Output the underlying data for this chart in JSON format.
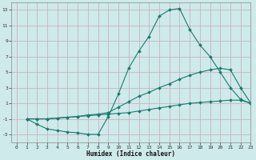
{
  "line1_x": [
    1,
    2,
    3,
    4,
    5,
    6,
    7,
    8,
    9,
    10,
    11,
    12,
    13,
    14,
    15,
    16,
    17,
    18,
    19,
    20,
    21,
    22,
    23
  ],
  "line1_y": [
    -1,
    -1.7,
    -2.3,
    -2.5,
    -2.7,
    -2.8,
    -3.0,
    -3.0,
    -0.7,
    2.2,
    5.5,
    7.7,
    9.6,
    12.2,
    13.0,
    13.2,
    10.5,
    8.5,
    7.0,
    5.0,
    3.0,
    1.5,
    1.0
  ],
  "line2_x": [
    1,
    2,
    3,
    4,
    5,
    6,
    7,
    8,
    9,
    10,
    11,
    12,
    13,
    14,
    15,
    16,
    17,
    18,
    19,
    20,
    21,
    22,
    23
  ],
  "line2_y": [
    -1,
    -1.0,
    -1.0,
    -0.9,
    -0.8,
    -0.7,
    -0.5,
    -0.4,
    -0.2,
    0.5,
    1.2,
    1.9,
    2.4,
    3.0,
    3.5,
    4.1,
    4.6,
    5.0,
    5.3,
    5.5,
    5.3,
    3.0,
    1.0
  ],
  "line3_x": [
    1,
    2,
    3,
    4,
    5,
    6,
    7,
    8,
    9,
    10,
    11,
    12,
    13,
    14,
    15,
    16,
    17,
    18,
    19,
    20,
    21,
    22,
    23
  ],
  "line3_y": [
    -1,
    -1.0,
    -1.0,
    -0.9,
    -0.8,
    -0.7,
    -0.6,
    -0.5,
    -0.4,
    -0.3,
    -0.2,
    0.0,
    0.2,
    0.4,
    0.6,
    0.8,
    1.0,
    1.1,
    1.2,
    1.3,
    1.4,
    1.4,
    1.0
  ],
  "color": "#1a7a6e",
  "bg_color": "#ceeaea",
  "grid_color": "#a8cccc",
  "xlabel": "Humidex (Indice chaleur)",
  "xlim": [
    -0.5,
    23
  ],
  "ylim": [
    -4,
    14
  ],
  "yticks": [
    -3,
    -1,
    1,
    3,
    5,
    7,
    9,
    11,
    13
  ],
  "xticks": [
    0,
    1,
    2,
    3,
    4,
    5,
    6,
    7,
    8,
    9,
    10,
    11,
    12,
    13,
    14,
    15,
    16,
    17,
    18,
    19,
    20,
    21,
    22,
    23
  ]
}
